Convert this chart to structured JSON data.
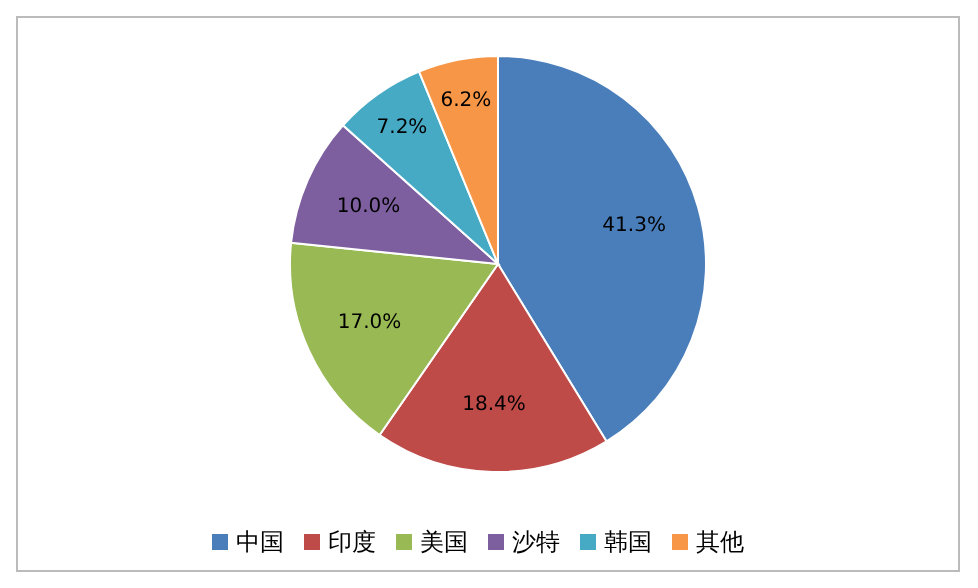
{
  "chart_data": {
    "type": "pie",
    "categories": [
      "中国",
      "印度",
      "美国",
      "沙特",
      "韩国",
      "其他"
    ],
    "values": [
      41.3,
      18.4,
      17.0,
      10.0,
      7.2,
      6.2
    ],
    "value_labels": [
      "41.3%",
      "18.4%",
      "17.0%",
      "10.0%",
      "7.2%",
      "6.2%"
    ],
    "colors": [
      "#4a7ebb",
      "#be4b48",
      "#98b954",
      "#7d5fa0",
      "#46aac5",
      "#f79646"
    ],
    "legend": "bottom"
  }
}
